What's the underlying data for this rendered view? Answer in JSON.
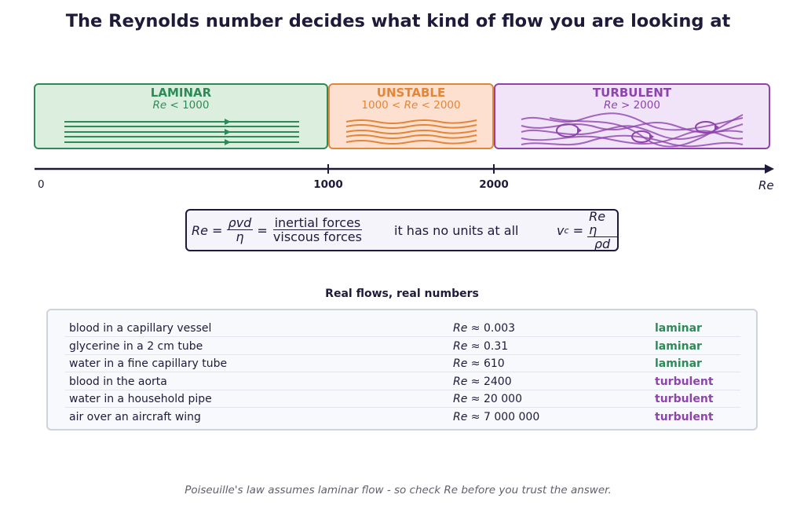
{
  "title": "The Reynolds number decides what kind of flow you are looking at",
  "regimes": {
    "laminar": {
      "name": "LAMINAR",
      "range_var": "Re",
      "range_rest": " < 1000",
      "color": "#2e8b57",
      "fill": "#dcefdf"
    },
    "unstable": {
      "name": "UNSTABLE",
      "range_lo": "1000 < ",
      "range_var": "Re",
      "range_hi": " < 2000",
      "color": "#e38637",
      "fill": "#fde0cf"
    },
    "turbulent": {
      "name": "TURBULENT",
      "range_var": "Re",
      "range_rest": " > 2000",
      "color": "#8e44ad",
      "fill": "#f1e3f8"
    }
  },
  "axis": {
    "origin_label": "0",
    "ticks": [
      "1000",
      "2000"
    ],
    "name": "Re"
  },
  "formula": {
    "lhs": "Re",
    "frac1_num": "ρvd",
    "frac1_den": "η",
    "frac2_num": "inertial forces",
    "frac2_den": "viscous forces",
    "note": "it has no units at all",
    "vc_lhs": "v",
    "vc_sub": "c",
    "vc_num": "Re η",
    "vc_den": "ρd"
  },
  "table": {
    "title": "Real flows, real numbers",
    "value_prefix": "Re ≈",
    "rows": [
      {
        "desc": "blood in a capillary vessel",
        "value": "0.003",
        "kind": "laminar"
      },
      {
        "desc": "glycerine in a 2 cm tube",
        "value": "0.31",
        "kind": "laminar"
      },
      {
        "desc": "water in a fine capillary tube",
        "value": "610",
        "kind": "laminar"
      },
      {
        "desc": "blood in the aorta",
        "value": "2400",
        "kind": "turbulent"
      },
      {
        "desc": "water in a household pipe",
        "value": "20 000",
        "kind": "turbulent"
      },
      {
        "desc": "air over an aircraft wing",
        "value": "7 000 000",
        "kind": "turbulent"
      }
    ]
  },
  "footer": "Poiseuille's law assumes laminar flow - so check Re before you trust the answer.",
  "colors": {
    "ink": "#1e1b3a",
    "laminar": "#2e8b57",
    "unstable": "#e38637",
    "turbulent": "#8e44ad"
  }
}
